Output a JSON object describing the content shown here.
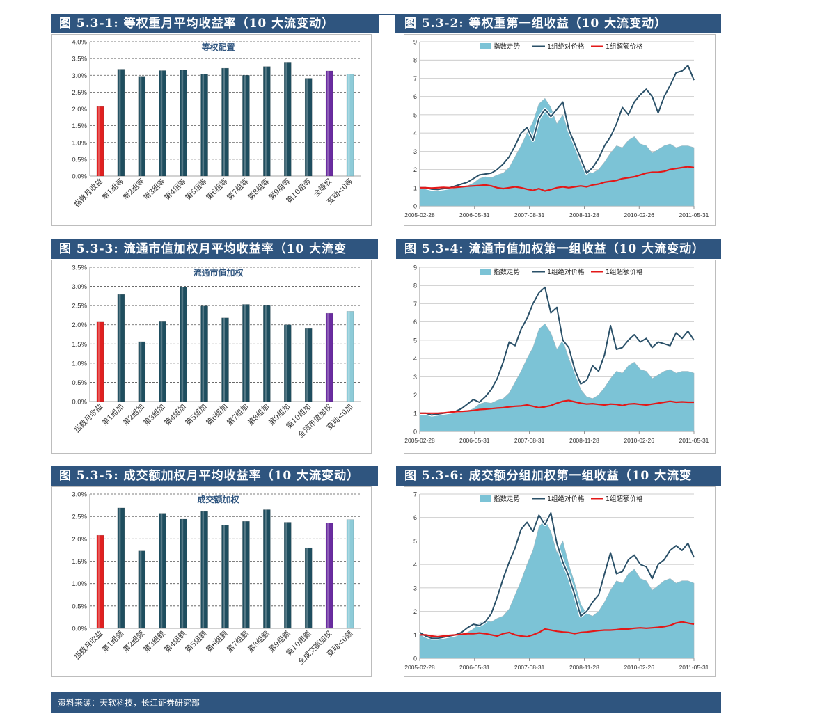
{
  "colors": {
    "header_bg": "#2f557f",
    "bar_teal": "#1f4e5f",
    "bar_red": "#e02020",
    "bar_purple": "#6a2ca0",
    "bar_lightblue": "#8ecbd8",
    "area_fill": "#7cc3d6",
    "line_abs": "#2a5068",
    "line_excess": "#e31818"
  },
  "headers": {
    "h1": "图 5.3-1: 等权重月平均收益率（10 大流变动）",
    "h2": "图 5.3-2: 等权重第一组收益（10 大流变动）",
    "h3": "图 5.3-3: 流通市值加权月平均收益率（10 大流变",
    "h4": "图 5.3-4: 流通市值加权第一组收益（10 大流变动）",
    "h5": "图 5.3-5: 成交额加权月平均收益率（10 大流变动）",
    "h6": "图 5.3-6: 成交额分组加权第一组收益（10 大流变"
  },
  "footer": "资料来源：天软科技，长江证券研究部",
  "chart_data": [
    {
      "type": "bar",
      "title": "等权配置",
      "categories": [
        "指数月收益",
        "第1组等",
        "第2组等",
        "第3组等",
        "第4组等",
        "第5组等",
        "第6组等",
        "第7组等",
        "第8组等",
        "第9组等",
        "第10组等",
        "全等权",
        "变动<0等"
      ],
      "values": [
        2.07,
        3.18,
        2.97,
        3.14,
        3.15,
        3.04,
        3.21,
        3.0,
        3.26,
        3.39,
        2.91,
        3.13,
        3.03
      ],
      "ylim": [
        0,
        4.0
      ],
      "ystep": 0.5,
      "yticks": [
        "0.0%",
        "0.5%",
        "1.0%",
        "1.5%",
        "2.0%",
        "2.5%",
        "3.0%",
        "3.5%",
        "4.0%"
      ]
    },
    {
      "type": "bar",
      "title": "流通市值加权",
      "categories": [
        "指数月收益",
        "第1组加",
        "第2组加",
        "第3组加",
        "第4组加",
        "第5组加",
        "第6组加",
        "第7组加",
        "第8组加",
        "第9组加",
        "第10组加",
        "全流市值加权",
        "变动<0加"
      ],
      "values": [
        2.07,
        2.79,
        1.56,
        2.08,
        2.98,
        2.49,
        2.18,
        2.53,
        2.5,
        2.0,
        1.9,
        2.3,
        2.35
      ],
      "ylim": [
        0,
        3.5
      ],
      "ystep": 0.5,
      "yticks": [
        "0.0%",
        "0.5%",
        "1.0%",
        "1.5%",
        "2.0%",
        "2.5%",
        "3.0%",
        "3.5%"
      ]
    },
    {
      "type": "bar",
      "title": "成交额加权",
      "categories": [
        "指数月收益",
        "第1组额",
        "第2组额",
        "第3组额",
        "第4组额",
        "第5组额",
        "第6组额",
        "第7组额",
        "第8组额",
        "第9组额",
        "第10组额",
        "全成交额加权",
        "变动<0额"
      ],
      "values": [
        2.08,
        2.69,
        1.73,
        2.57,
        2.44,
        2.61,
        2.31,
        2.39,
        2.65,
        2.37,
        1.8,
        2.35,
        2.43
      ],
      "ylim": [
        0,
        3.0
      ],
      "ystep": 0.5,
      "yticks": [
        "0.0%",
        "0.5%",
        "1.0%",
        "1.5%",
        "2.0%",
        "2.5%",
        "3.0%"
      ]
    },
    {
      "type": "line",
      "legend": [
        "指数走势",
        "1组绝对价格",
        "1组超额价格"
      ],
      "xticks": [
        "2005-02-28",
        "2006-05-31",
        "2007-08-31",
        "2008-11-28",
        "2010-02-26",
        "2011-05-31"
      ],
      "ylim": [
        0,
        9
      ],
      "yticks": [
        "0",
        "1",
        "2",
        "3",
        "4",
        "5",
        "6",
        "7",
        "8",
        "9"
      ],
      "series": [
        {
          "name": "指数走势",
          "values": [
            1.0,
            1.0,
            0.95,
            0.92,
            0.95,
            0.98,
            1.0,
            1.05,
            1.1,
            1.25,
            1.5,
            1.6,
            1.55,
            1.7,
            1.8,
            2.1,
            2.7,
            3.3,
            4.0,
            4.6,
            5.6,
            5.9,
            5.4,
            4.5,
            5.0,
            4.0,
            3.2,
            2.3,
            1.9,
            1.8,
            2.0,
            2.4,
            2.9,
            3.3,
            3.2,
            3.6,
            3.8,
            3.4,
            3.3,
            2.9,
            3.1,
            3.3,
            3.4,
            3.2,
            3.3,
            3.3,
            3.2
          ]
        },
        {
          "name": "1组绝对价格",
          "values": [
            1.0,
            1.0,
            0.92,
            0.9,
            0.95,
            1.0,
            1.1,
            1.2,
            1.3,
            1.5,
            1.7,
            1.75,
            1.8,
            2.0,
            2.3,
            2.7,
            3.3,
            4.0,
            4.3,
            3.6,
            4.8,
            5.3,
            4.9,
            5.3,
            5.7,
            4.2,
            3.4,
            2.6,
            1.8,
            2.1,
            2.6,
            3.3,
            3.8,
            4.5,
            5.4,
            5.0,
            5.7,
            6.1,
            6.4,
            6.0,
            5.1,
            6.0,
            6.6,
            7.3,
            7.4,
            7.7,
            6.9
          ]
        },
        {
          "name": "1组超额价格",
          "values": [
            1.0,
            1.0,
            0.98,
            1.0,
            1.02,
            1.0,
            1.02,
            1.05,
            1.08,
            1.1,
            1.12,
            1.15,
            1.1,
            1.0,
            0.95,
            1.0,
            1.05,
            1.0,
            0.92,
            0.85,
            0.95,
            0.82,
            0.9,
            1.0,
            1.05,
            1.0,
            1.05,
            1.1,
            1.05,
            1.15,
            1.2,
            1.3,
            1.35,
            1.4,
            1.5,
            1.55,
            1.6,
            1.7,
            1.8,
            1.85,
            1.85,
            1.9,
            2.0,
            2.05,
            2.1,
            2.15,
            2.1
          ]
        }
      ]
    },
    {
      "type": "line",
      "legend": [
        "指数走势",
        "1组绝对价格",
        "1组超额价格"
      ],
      "xticks": [
        "2005-02-28",
        "2006-05-31",
        "2007-08-31",
        "2008-11-28",
        "2010-02-26",
        "2011-05-31"
      ],
      "ylim": [
        0,
        9
      ],
      "yticks": [
        "0",
        "1",
        "2",
        "3",
        "4",
        "5",
        "6",
        "7",
        "8",
        "9"
      ],
      "series": [
        {
          "name": "指数走势",
          "values": [
            1.0,
            1.0,
            0.95,
            0.92,
            0.95,
            0.98,
            1.0,
            1.05,
            1.1,
            1.25,
            1.5,
            1.6,
            1.55,
            1.7,
            1.8,
            2.1,
            2.7,
            3.3,
            4.0,
            4.6,
            5.6,
            5.9,
            5.4,
            4.5,
            5.0,
            4.0,
            3.2,
            2.3,
            1.9,
            1.8,
            2.0,
            2.4,
            2.9,
            3.3,
            3.2,
            3.6,
            3.8,
            3.4,
            3.3,
            2.9,
            3.1,
            3.3,
            3.4,
            3.2,
            3.3,
            3.3,
            3.2
          ]
        },
        {
          "name": "1组绝对价格",
          "values": [
            1.0,
            1.0,
            0.9,
            0.95,
            1.0,
            1.05,
            1.1,
            1.25,
            1.5,
            1.75,
            1.6,
            1.9,
            2.3,
            2.9,
            3.8,
            4.9,
            4.7,
            5.6,
            6.2,
            7.0,
            7.6,
            7.9,
            6.5,
            6.8,
            5.0,
            4.6,
            3.4,
            2.6,
            2.8,
            3.6,
            3.3,
            4.2,
            5.8,
            4.5,
            4.6,
            5.0,
            5.3,
            4.9,
            5.1,
            4.6,
            4.9,
            4.8,
            4.7,
            5.4,
            5.1,
            5.5,
            5.0
          ]
        },
        {
          "name": "1组超额价格",
          "values": [
            1.0,
            1.0,
            1.0,
            1.0,
            1.02,
            1.05,
            1.08,
            1.1,
            1.12,
            1.15,
            1.2,
            1.22,
            1.25,
            1.28,
            1.3,
            1.35,
            1.38,
            1.4,
            1.45,
            1.38,
            1.3,
            1.35,
            1.42,
            1.55,
            1.65,
            1.7,
            1.62,
            1.55,
            1.5,
            1.52,
            1.48,
            1.45,
            1.5,
            1.48,
            1.42,
            1.5,
            1.52,
            1.48,
            1.45,
            1.5,
            1.55,
            1.6,
            1.65,
            1.6,
            1.62,
            1.6,
            1.6
          ]
        }
      ]
    },
    {
      "type": "line",
      "legend": [
        "指数走势",
        "1组绝对价格",
        "1组超额价格"
      ],
      "xticks": [
        "2005-02-28",
        "2006-05-31",
        "2007-08-31",
        "2008-11-28",
        "2010-02-26",
        "2011-05-31"
      ],
      "ylim": [
        0,
        7
      ],
      "yticks": [
        "0",
        "1",
        "2",
        "3",
        "4",
        "5",
        "6",
        "7"
      ],
      "series": [
        {
          "name": "指数走势",
          "values": [
            1.0,
            1.0,
            0.95,
            0.92,
            0.95,
            0.98,
            1.0,
            1.05,
            1.1,
            1.25,
            1.5,
            1.6,
            1.55,
            1.7,
            1.8,
            2.1,
            2.7,
            3.3,
            4.0,
            4.6,
            5.6,
            5.9,
            5.4,
            4.5,
            5.0,
            4.0,
            3.2,
            2.3,
            1.9,
            1.8,
            2.0,
            2.4,
            2.9,
            3.3,
            3.2,
            3.6,
            3.8,
            3.4,
            3.3,
            2.9,
            3.1,
            3.3,
            3.4,
            3.2,
            3.3,
            3.3,
            3.2
          ]
        },
        {
          "name": "1组绝对价格",
          "values": [
            1.1,
            0.95,
            0.85,
            0.85,
            0.9,
            0.95,
            1.0,
            1.1,
            1.3,
            1.45,
            1.4,
            1.55,
            1.9,
            2.6,
            3.4,
            4.1,
            4.7,
            5.5,
            5.8,
            5.4,
            6.1,
            5.7,
            6.2,
            4.9,
            4.1,
            3.5,
            2.7,
            1.8,
            2.0,
            2.4,
            2.7,
            3.6,
            4.5,
            3.6,
            3.7,
            4.2,
            4.4,
            4.0,
            3.9,
            3.4,
            4.0,
            4.2,
            4.6,
            4.8,
            4.6,
            4.9,
            4.3
          ]
        },
        {
          "name": "1组超额价格",
          "values": [
            1.0,
            1.0,
            0.95,
            0.92,
            0.95,
            0.98,
            1.0,
            1.02,
            1.05,
            1.05,
            1.08,
            1.05,
            1.0,
            0.95,
            1.05,
            1.1,
            1.0,
            0.95,
            0.92,
            1.0,
            1.1,
            1.25,
            1.2,
            1.15,
            1.12,
            1.1,
            1.05,
            1.1,
            1.12,
            1.15,
            1.18,
            1.2,
            1.2,
            1.22,
            1.25,
            1.25,
            1.28,
            1.3,
            1.28,
            1.3,
            1.32,
            1.35,
            1.4,
            1.5,
            1.55,
            1.5,
            1.45
          ]
        }
      ]
    }
  ]
}
